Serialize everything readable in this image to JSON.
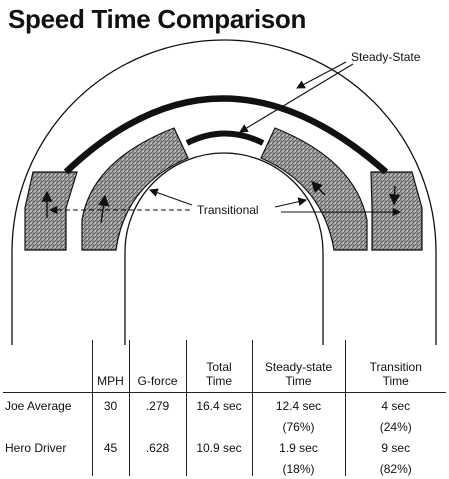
{
  "title": "Speed Time Comparison",
  "diagram": {
    "labels": {
      "steady_state": "Steady-State",
      "transitional": "Transitional"
    }
  },
  "table": {
    "headers": {
      "row_label": "",
      "mph": "MPH",
      "gforce": "G-force",
      "total_time_line1": "Total",
      "total_time_line2": "Time",
      "steady_line1": "Steady-state",
      "steady_line2": "Time",
      "transition_line1": "Transition",
      "transition_line2": "Time"
    },
    "rows": [
      {
        "name": "Joe Average",
        "mph": "30",
        "gforce": ".279",
        "total": "16.4 sec",
        "steady": "12.4 sec",
        "steady_pct": "(76%)",
        "transition": "4 sec",
        "transition_pct": "(24%)"
      },
      {
        "name": "Hero Driver",
        "mph": "45",
        "gforce": ".628",
        "total": "10.9 sec",
        "steady": "1.9 sec",
        "steady_pct": "(18%)",
        "transition": "9 sec",
        "transition_pct": "(82%)"
      }
    ]
  },
  "colors": {
    "ink": "#111111",
    "hatch_fill": "#9a9a9a",
    "background": "#ffffff"
  }
}
